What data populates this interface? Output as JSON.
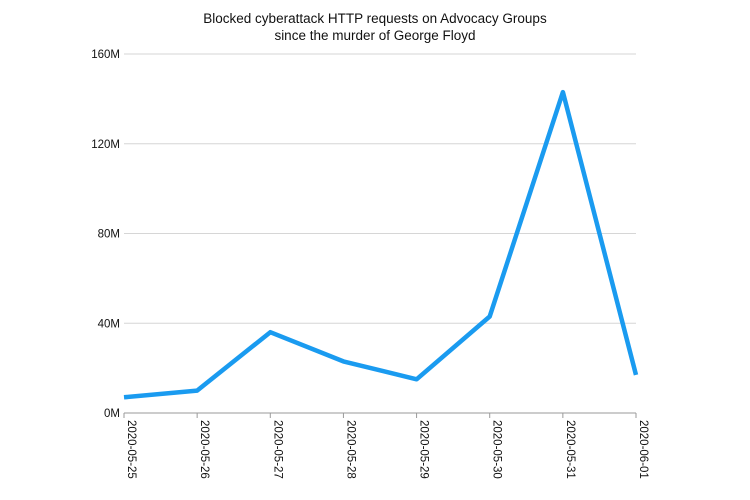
{
  "chart_data": {
    "type": "line",
    "title_lines": [
      "Blocked cyberattack HTTP requests on Advocacy Groups",
      "since the murder of George Floyd"
    ],
    "xlabel": "",
    "ylabel": "",
    "categories": [
      "2020-05-25",
      "2020-05-26",
      "2020-05-27",
      "2020-05-28",
      "2020-05-29",
      "2020-05-30",
      "2020-05-31",
      "2020-06-01"
    ],
    "series": [
      {
        "values": [
          7000000,
          10000000,
          36000000,
          23000000,
          15000000,
          43000000,
          143000000,
          17000000
        ],
        "color": "#1a9bf0"
      }
    ],
    "ylim": [
      0,
      160000000
    ],
    "yticks": [
      {
        "value": 0,
        "label": "0M"
      },
      {
        "value": 40000000,
        "label": "40M"
      },
      {
        "value": 80000000,
        "label": "80M"
      },
      {
        "value": 120000000,
        "label": "120M"
      },
      {
        "value": 160000000,
        "label": "160M"
      }
    ],
    "grid": "horizontal",
    "legend": "none"
  }
}
